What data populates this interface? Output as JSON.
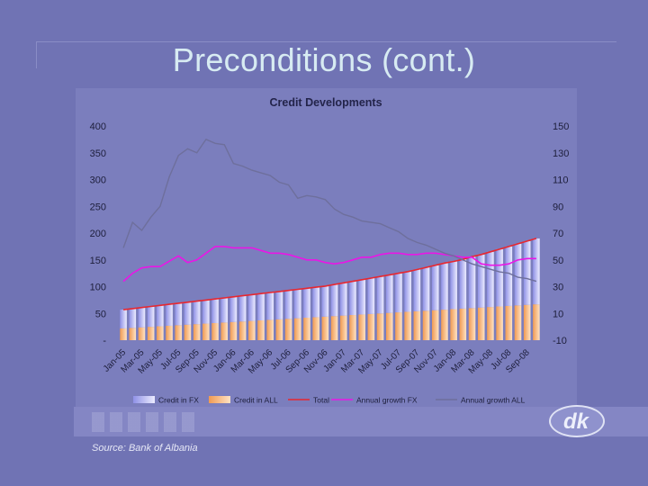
{
  "slide": {
    "title": "Preconditions (cont.)",
    "source": "Source: Bank of Albania",
    "logo_text": "dk"
  },
  "chart_data": {
    "type": "bar",
    "title": "Credit Developments",
    "categories": [
      "Jan-05",
      "Feb-05",
      "Mar-05",
      "Apr-05",
      "May-05",
      "Jun-05",
      "Jul-05",
      "Aug-05",
      "Sep-05",
      "Oct-05",
      "Nov-05",
      "Dec-05",
      "Jan-06",
      "Feb-06",
      "Mar-06",
      "Apr-06",
      "May-06",
      "Jun-06",
      "Jul-06",
      "Aug-06",
      "Sep-06",
      "Oct-06",
      "Nov-06",
      "Dec-06",
      "Jan-07",
      "Feb-07",
      "Mar-07",
      "Apr-07",
      "May-07",
      "Jun-07",
      "Jul-07",
      "Aug-07",
      "Sep-07",
      "Oct-07",
      "Nov-07",
      "Dec-07",
      "Jan-08",
      "Feb-08",
      "Mar-08",
      "Apr-08",
      "May-08",
      "Jun-08",
      "Jul-08",
      "Aug-08",
      "Sep-08",
      "Oct-08"
    ],
    "tick_labels": [
      "Jan-05",
      "Mar-05",
      "May-05",
      "Jul-05",
      "Sep-05",
      "Nov-05",
      "Jan-06",
      "Mar-06",
      "May-06",
      "Jul-06",
      "Sep-06",
      "Nov-06",
      "Jan-07",
      "Mar-07",
      "May-07",
      "Jul-07",
      "Sep-07",
      "Nov-07",
      "Jan-08",
      "Mar-08",
      "May-08",
      "Jul-08",
      "Sep-08"
    ],
    "y_left": {
      "ylim": [
        0,
        400
      ],
      "ticks": [
        0,
        50,
        100,
        150,
        200,
        250,
        300,
        350,
        400
      ],
      "tick_labels": [
        "-",
        "50",
        "100",
        "150",
        "200",
        "250",
        "300",
        "350",
        "400"
      ]
    },
    "y_right": {
      "ylim": [
        -10,
        150
      ],
      "ticks": [
        -10,
        10,
        30,
        50,
        70,
        90,
        110,
        130,
        150
      ],
      "tick_labels": [
        "-10",
        "10",
        "30",
        "50",
        "70",
        "90",
        "110",
        "130",
        "150"
      ]
    },
    "grid": false,
    "legend_position": "bottom",
    "series": [
      {
        "name": "Credit in FX",
        "kind": "bar",
        "axis": "left",
        "stacked": true,
        "color": "#9c9ef0",
        "values": [
          35,
          36,
          37,
          38,
          39,
          40,
          41,
          42,
          43,
          44,
          45,
          46,
          47,
          48,
          49,
          50,
          51,
          52,
          53,
          54,
          55,
          56,
          57,
          59,
          61,
          63,
          65,
          67,
          69,
          71,
          73,
          75,
          78,
          81,
          84,
          87,
          89,
          92,
          96,
          99,
          103,
          107,
          111,
          115,
          119,
          123
        ]
      },
      {
        "name": "Credit in ALL",
        "kind": "bar",
        "axis": "left",
        "stacked": true,
        "color": "#f4b277",
        "values": [
          22,
          23,
          24,
          25,
          26,
          27,
          28,
          29,
          30,
          31,
          32,
          33,
          34,
          35,
          36,
          37,
          38,
          39,
          40,
          41,
          42,
          43,
          44,
          45,
          46,
          47,
          48,
          49,
          50,
          51,
          52,
          53,
          54,
          55,
          56,
          57,
          58,
          59,
          60,
          61,
          62,
          63,
          64,
          65,
          66,
          67
        ]
      },
      {
        "name": "Total",
        "kind": "line",
        "axis": "left",
        "color": "#e8272f",
        "values": [
          57,
          59,
          61,
          63,
          65,
          67,
          69,
          71,
          73,
          75,
          77,
          79,
          81,
          83,
          85,
          87,
          89,
          91,
          93,
          95,
          97,
          99,
          101,
          104,
          107,
          110,
          113,
          116,
          119,
          122,
          125,
          128,
          132,
          136,
          140,
          144,
          147,
          151,
          156,
          160,
          165,
          170,
          175,
          180,
          185,
          190
        ]
      },
      {
        "name": "Annual growth FX",
        "kind": "line",
        "axis": "right",
        "color": "#ea16e6",
        "values": [
          34,
          40,
          44,
          45,
          45,
          49,
          53,
          48,
          50,
          55,
          60,
          60,
          59,
          59,
          59,
          57,
          55,
          55,
          54,
          52,
          50,
          50,
          48,
          47,
          48,
          50,
          52,
          52,
          54,
          55,
          55,
          54,
          54,
          55,
          55,
          54,
          53,
          52,
          52,
          47,
          46,
          46,
          47,
          50,
          51,
          51
        ]
      },
      {
        "name": "Annual growth ALL",
        "kind": "line",
        "axis": "right",
        "color": "#6e6f9c",
        "values": [
          59,
          78,
          72,
          82,
          90,
          112,
          128,
          133,
          130,
          140,
          137,
          136,
          122,
          120,
          117,
          115,
          113,
          108,
          106,
          96,
          98,
          97,
          95,
          88,
          84,
          82,
          79,
          78,
          77,
          74,
          71,
          66,
          63,
          61,
          58,
          55,
          53,
          50,
          47,
          45,
          43,
          41,
          40,
          37,
          36,
          34
        ]
      }
    ]
  }
}
